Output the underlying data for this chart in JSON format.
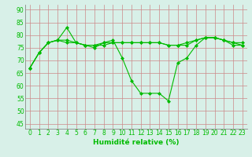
{
  "title": "",
  "xlabel": "Humidité relative (%)",
  "ylabel": "",
  "bg_color": "#d8f0e8",
  "grid_color": "#cc8888",
  "line_color": "#00bb00",
  "xlim": [
    -0.5,
    23.5
  ],
  "ylim": [
    43,
    92
  ],
  "yticks": [
    45,
    50,
    55,
    60,
    65,
    70,
    75,
    80,
    85,
    90
  ],
  "xticks": [
    0,
    1,
    2,
    3,
    4,
    5,
    6,
    7,
    8,
    9,
    10,
    11,
    12,
    13,
    14,
    15,
    16,
    17,
    18,
    19,
    20,
    21,
    22,
    23
  ],
  "series": [
    [
      67,
      73,
      77,
      78,
      83,
      77,
      76,
      75,
      77,
      78,
      71,
      62,
      57,
      57,
      57,
      54,
      69,
      71,
      76,
      79,
      79,
      78,
      76,
      76
    ],
    [
      67,
      73,
      77,
      78,
      78,
      77,
      76,
      76,
      77,
      77,
      77,
      77,
      77,
      77,
      77,
      76,
      76,
      77,
      78,
      79,
      79,
      78,
      77,
      77
    ],
    [
      67,
      73,
      77,
      78,
      77,
      77,
      76,
      76,
      76,
      77,
      77,
      77,
      77,
      77,
      77,
      76,
      76,
      76,
      78,
      79,
      79,
      78,
      77,
      76
    ]
  ],
  "marker": "D",
  "marker_size": 2,
  "line_width": 0.8,
  "tick_fontsize": 5.5,
  "xlabel_fontsize": 6.5
}
